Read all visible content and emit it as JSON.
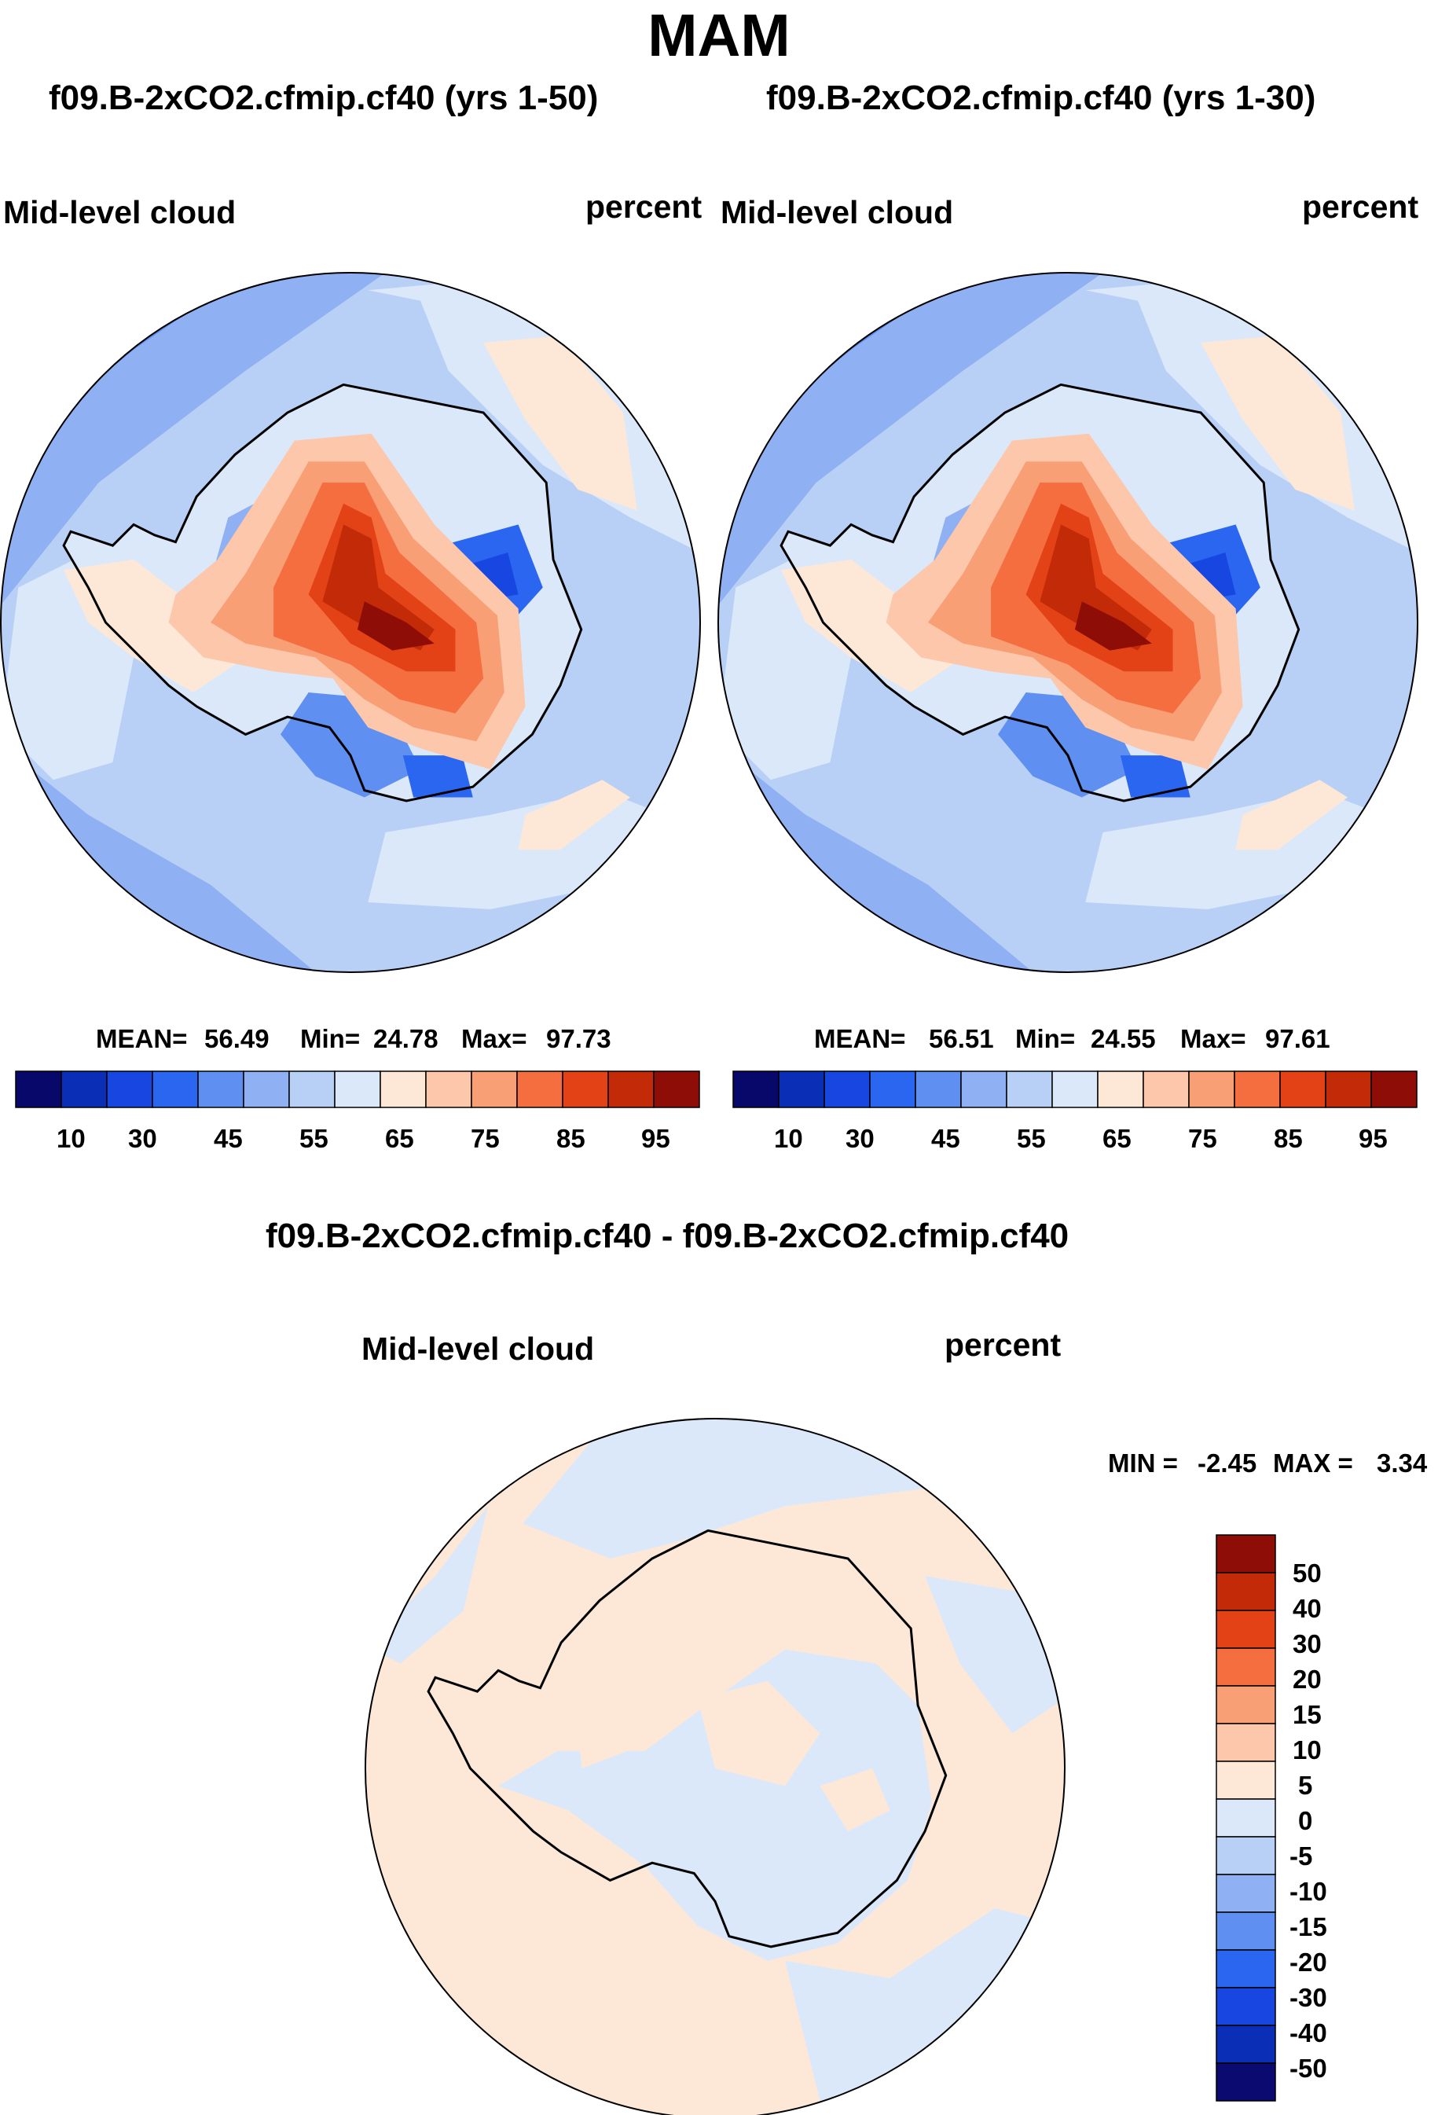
{
  "page_title": "MAM",
  "colors": {
    "hcont": [
      "#08086b",
      "#0b2eb6",
      "#1746e0",
      "#2a66ef",
      "#5f8ff0",
      "#8fb0f2",
      "#b8cff6",
      "#dbe8fa",
      "#fde8d8",
      "#fcc7aa",
      "#f99f76",
      "#f46e40",
      "#e34216",
      "#c22a08",
      "#8f0d07"
    ],
    "dcont": [
      "#0a0a70",
      "#0b2eb6",
      "#1746e0",
      "#2a66ef",
      "#5f8ff0",
      "#8fb0f2",
      "#b8cff6",
      "#dbe8fa",
      "#fde8d8",
      "#fcc7aa",
      "#f99f76",
      "#f46e40",
      "#e34216",
      "#c22a08",
      "#8f0d07"
    ]
  },
  "panels": [
    {
      "subtitle": "f09.B-2xCO2.cfmip.cf40 (yrs 1-50)",
      "variable": "Mid-level cloud",
      "units": "percent",
      "stats": {
        "mean_label": "MEAN=",
        "mean": "56.49",
        "min_label": "Min=",
        "min": "24.78",
        "max_label": "Max=",
        "max": "97.73"
      }
    },
    {
      "subtitle": "f09.B-2xCO2.cfmip.cf40 (yrs 1-30)",
      "variable": "Mid-level cloud",
      "units": "percent",
      "stats": {
        "mean_label": "MEAN=",
        "mean": "56.51",
        "min_label": "Min=",
        "min": "24.55",
        "max_label": "Max=",
        "max": "97.61"
      }
    }
  ],
  "diff_panel": {
    "subtitle": "f09.B-2xCO2.cfmip.cf40 - f09.B-2xCO2.cfmip.cf40",
    "variable": "Mid-level cloud",
    "units": "percent",
    "stats": {
      "min_label": "MIN =",
      "min": "-2.45",
      "max_label": "MAX =",
      "max": "3.34"
    }
  },
  "chart_data": [
    {
      "type": "heatmap",
      "projection": "south polar stereographic",
      "title": "f09.B-2xCO2.cfmip.cf40 (yrs 1-50)",
      "field": "Mid-level cloud",
      "units": "percent",
      "mean": 56.49,
      "min": 24.78,
      "max": 97.73,
      "colorbar_ticks": [
        "10",
        "30",
        "45",
        "55",
        "65",
        "75",
        "85",
        "95"
      ],
      "colorbar_levels": 15
    },
    {
      "type": "heatmap",
      "projection": "south polar stereographic",
      "title": "f09.B-2xCO2.cfmip.cf40 (yrs 1-30)",
      "field": "Mid-level cloud",
      "units": "percent",
      "mean": 56.51,
      "min": 24.55,
      "max": 97.61,
      "colorbar_ticks": [
        "10",
        "30",
        "45",
        "55",
        "65",
        "75",
        "85",
        "95"
      ],
      "colorbar_levels": 15
    },
    {
      "type": "heatmap",
      "projection": "south polar stereographic",
      "title": "f09.B-2xCO2.cfmip.cf40 - f09.B-2xCO2.cfmip.cf40",
      "field": "Mid-level cloud",
      "units": "percent",
      "min": -2.45,
      "max": 3.34,
      "colorbar_ticks": [
        "50",
        "40",
        "30",
        "20",
        "15",
        "10",
        "5",
        "0",
        "-5",
        "-10",
        "-15",
        "-20",
        "-30",
        "-40",
        "-50"
      ],
      "colorbar_levels": 15
    }
  ]
}
